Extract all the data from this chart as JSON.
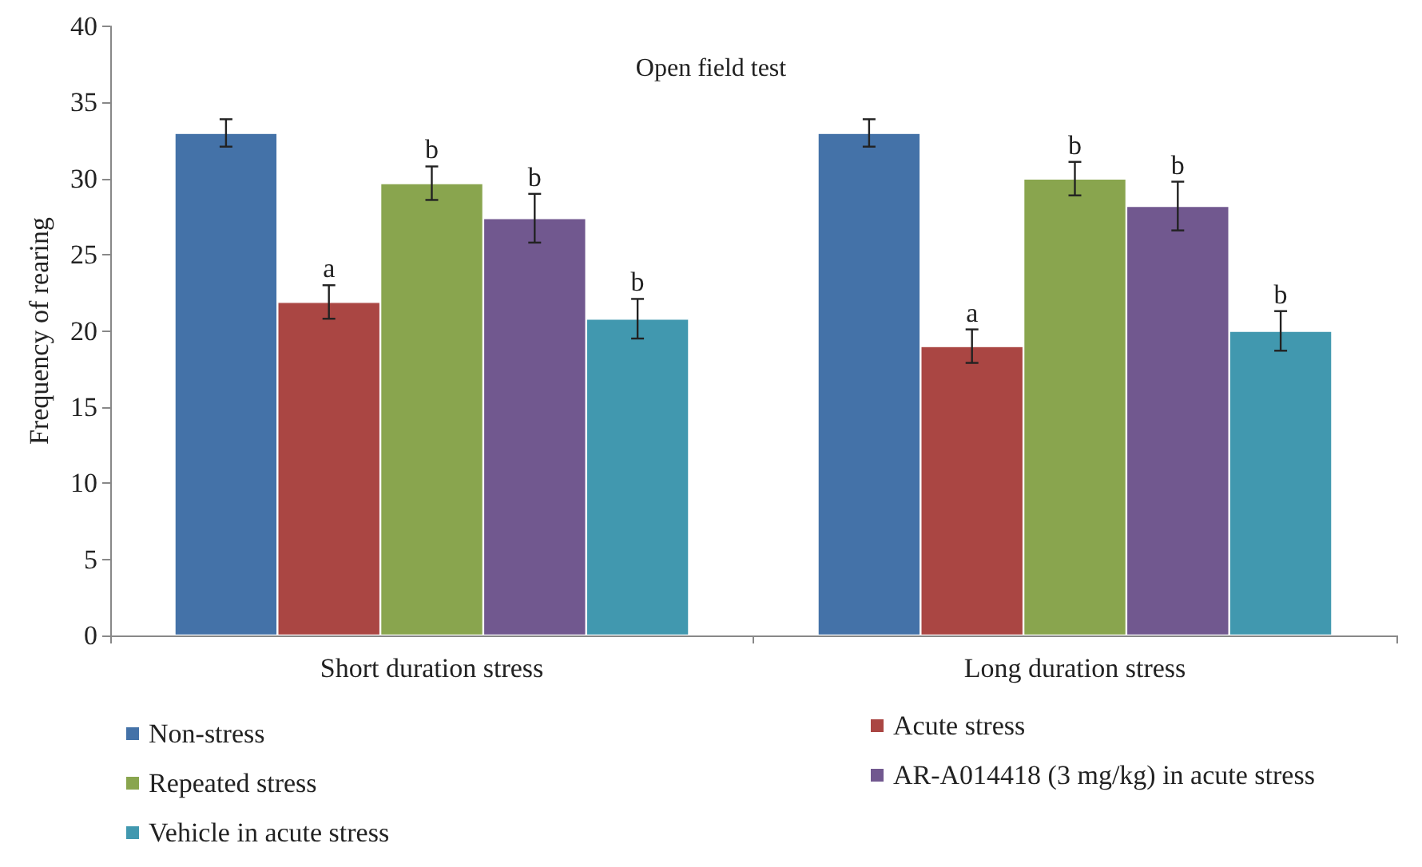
{
  "chart_data": {
    "type": "bar",
    "title": "Open field test",
    "ylabel": "Frequency of rearing",
    "categories": [
      "Short duration stress",
      "Long duration stress"
    ],
    "ylim": [
      0,
      40
    ],
    "yticks": [
      0,
      5,
      10,
      15,
      20,
      25,
      30,
      35,
      40
    ],
    "grid": false,
    "legend": "bottom",
    "series": [
      {
        "name": "Non-stress",
        "color": "#4472a8",
        "values": [
          33,
          33
        ],
        "errors": [
          0.9,
          0.9
        ]
      },
      {
        "name": "Acute stress",
        "color": "#aa4643",
        "values": [
          21.9,
          19
        ],
        "errors": [
          1.1,
          1.1
        ],
        "value_labels": [
          "a",
          "a"
        ]
      },
      {
        "name": "Repeated stress",
        "color": "#89a54e",
        "values": [
          29.7,
          30
        ],
        "errors": [
          1.1,
          1.1
        ],
        "value_labels": [
          "b",
          "b"
        ]
      },
      {
        "name": "AR-A014418 (3 mg/kg) in acute stress",
        "color": "#71588f",
        "values": [
          27.4,
          28.2
        ],
        "errors": [
          1.6,
          1.6
        ],
        "value_labels": [
          "b",
          "b"
        ]
      },
      {
        "name": "Vehicle in acute stress",
        "color": "#4198af",
        "values": [
          20.8,
          20
        ],
        "errors": [
          1.3,
          1.3
        ],
        "value_labels": [
          "b",
          "b"
        ]
      }
    ]
  }
}
